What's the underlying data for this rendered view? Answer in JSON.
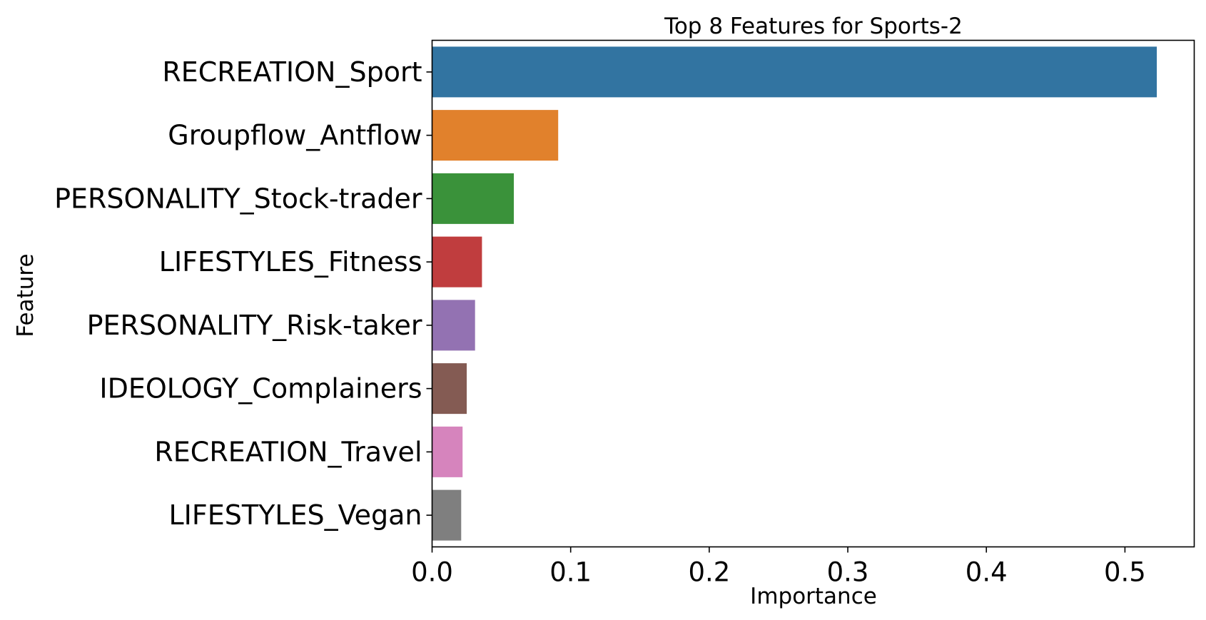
{
  "chart_data": {
    "type": "bar",
    "orientation": "horizontal",
    "title": "Top 8 Features for Sports-2",
    "xlabel": "Importance",
    "ylabel": "Feature",
    "xlim": [
      0.0,
      0.55
    ],
    "xticks": [
      0.0,
      0.1,
      0.2,
      0.3,
      0.4,
      0.5
    ],
    "xtick_labels": [
      "0.0",
      "0.1",
      "0.2",
      "0.3",
      "0.4",
      "0.5"
    ],
    "grid": false,
    "categories": [
      "RECREATION_Sport",
      "Groupflow_Antflow",
      "PERSONALITY_Stock-trader",
      "LIFESTYLES_Fitness",
      "PERSONALITY_Risk-taker",
      "IDEOLOGY_Complainers",
      "RECREATION_Travel",
      "LIFESTYLES_Vegan"
    ],
    "values": [
      0.523,
      0.091,
      0.059,
      0.036,
      0.031,
      0.025,
      0.022,
      0.021
    ],
    "colors": [
      "#3274a1",
      "#e1812c",
      "#3a923a",
      "#c03d3e",
      "#9372b2",
      "#845b53",
      "#d684bd",
      "#7f7f7f"
    ]
  }
}
